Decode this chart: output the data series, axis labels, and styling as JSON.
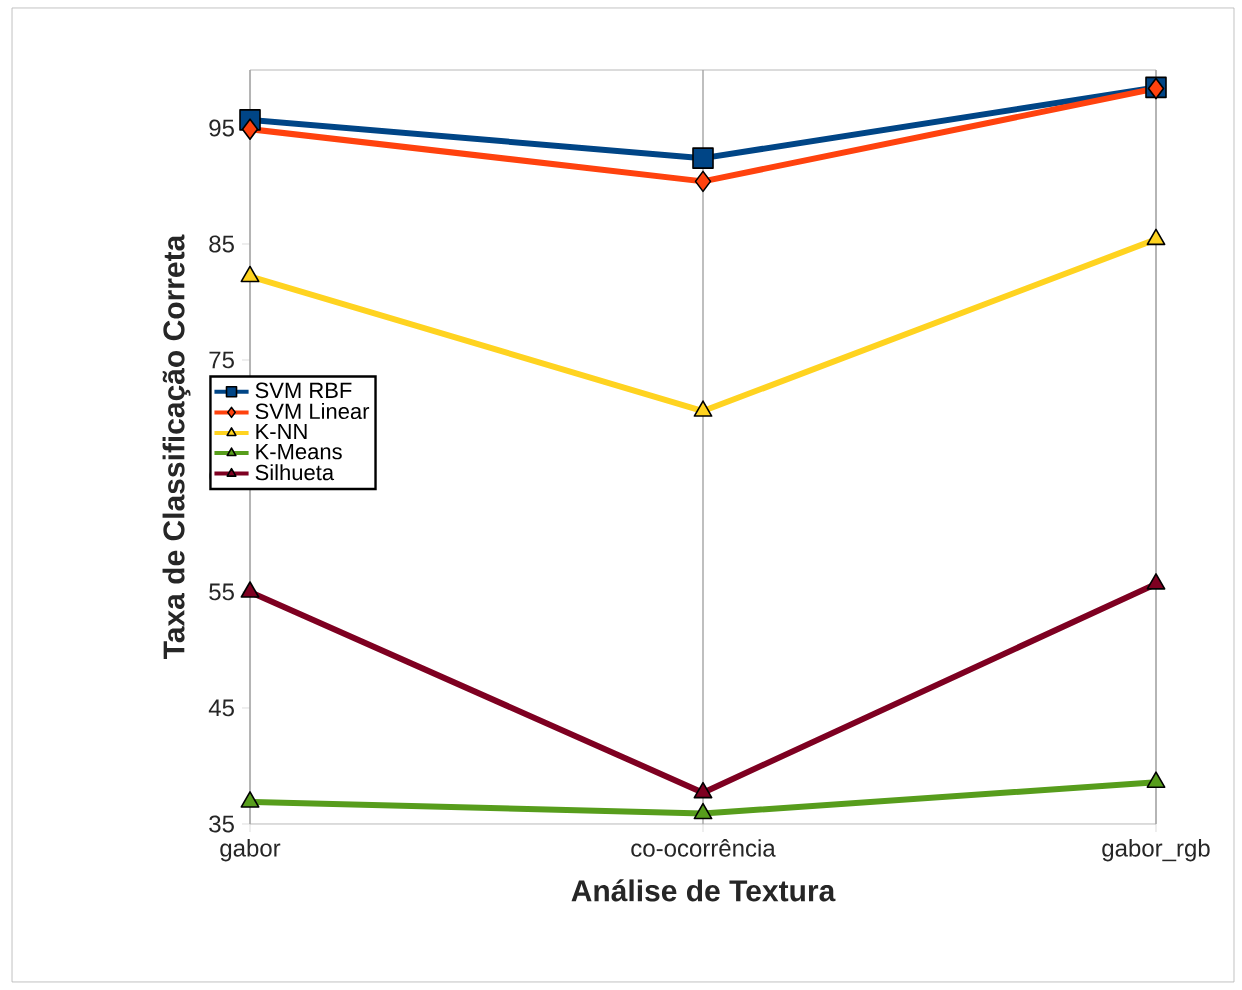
{
  "chart_data": {
    "type": "line",
    "xlabel": "Análise de Textura",
    "ylabel": "Taxa de Classificação Correta",
    "categories": [
      "gabor",
      "co-ocorrência",
      "gabor_rgb"
    ],
    "ylim": [
      35,
      100
    ],
    "yticks": [
      35,
      45,
      55,
      65,
      75,
      85,
      95
    ],
    "grid": "x",
    "legend": "left",
    "series": [
      {
        "name": "SVM RBF",
        "color": "#004586",
        "marker": "square",
        "values": [
          95.7,
          92.4,
          98.5
        ]
      },
      {
        "name": "SVM Linear",
        "color": "#ff420e",
        "marker": "diamond",
        "values": [
          94.9,
          90.4,
          98.4
        ]
      },
      {
        "name": "K-NN",
        "color": "#ffd320",
        "marker": "triangle",
        "values": [
          82.2,
          70.6,
          85.4
        ]
      },
      {
        "name": "K-Means",
        "color": "#579d1c",
        "marker": "triangle",
        "values": [
          36.9,
          35.9,
          38.6
        ]
      },
      {
        "name": "Silhueta",
        "color": "#7e0021",
        "marker": "triangle",
        "values": [
          55,
          37.7,
          55.7
        ]
      }
    ]
  }
}
